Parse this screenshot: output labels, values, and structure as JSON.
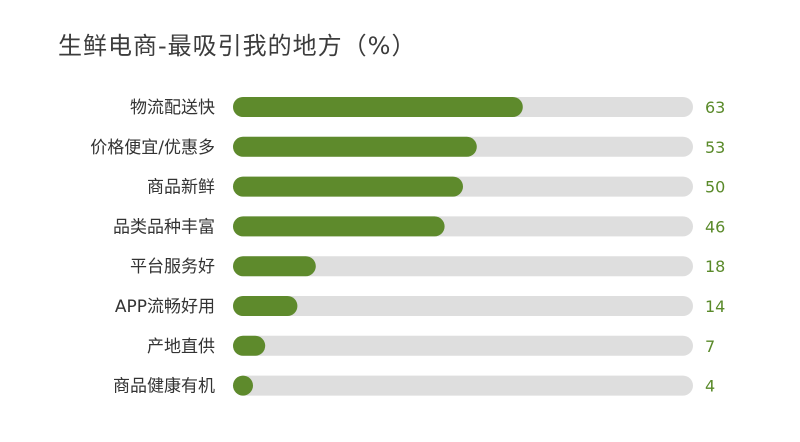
{
  "chart_data": {
    "type": "bar",
    "orientation": "horizontal",
    "title": "生鲜电商-最吸引我的地方（%）",
    "categories": [
      "物流配送快",
      "价格便宜/优惠多",
      "商品新鲜",
      "品类品种丰富",
      "平台服务好",
      "APP流畅好用",
      "产地直供",
      "商品健康有机"
    ],
    "values": [
      63,
      53,
      50,
      46,
      18,
      14,
      7,
      4
    ],
    "value_labels": [
      "63",
      "53",
      "50",
      "46",
      "18",
      "14",
      "7",
      "4"
    ],
    "xlim": [
      0,
      100
    ],
    "grid": false,
    "legend": "none",
    "bar_color": "#5e8a2c",
    "track_color": "#dedede",
    "value_color": "#5a8a2a"
  }
}
